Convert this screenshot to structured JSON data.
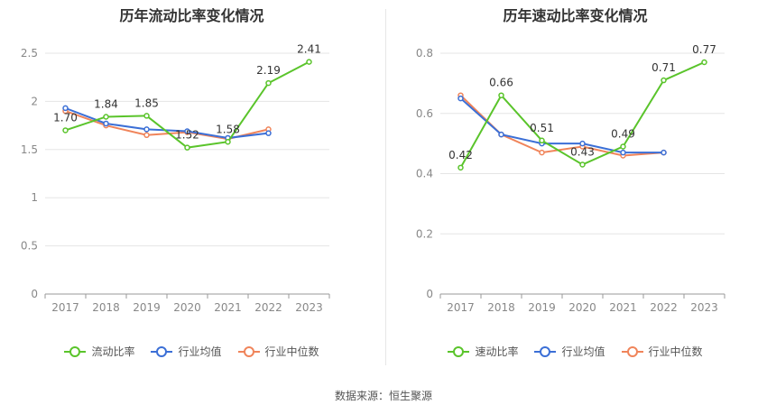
{
  "chart_data": [
    {
      "type": "line",
      "title": "历年流动比率变化情况",
      "categories": [
        "2017",
        "2018",
        "2019",
        "2020",
        "2021",
        "2022",
        "2023"
      ],
      "ylim": [
        0,
        2.5
      ],
      "yticks": [
        "0",
        "0.5",
        "1",
        "1.5",
        "2",
        "2.5"
      ],
      "ytick_values": [
        0,
        0.5,
        1,
        1.5,
        2,
        2.5
      ],
      "grid": true,
      "legend_position": "bottom",
      "series": [
        {
          "name": "流动比率",
          "color": "#5ac42b",
          "values": [
            1.7,
            1.84,
            1.85,
            1.52,
            1.58,
            2.19,
            2.41
          ],
          "labels": [
            "1.70",
            "1.84",
            "1.85",
            "1.52",
            "1.58",
            "2.19",
            "2.41"
          ]
        },
        {
          "name": "行业均值",
          "color": "#3b6fd6",
          "values": [
            1.93,
            1.77,
            1.71,
            1.69,
            1.62,
            1.67,
            null
          ]
        },
        {
          "name": "行业中位数",
          "color": "#f0845a",
          "values": [
            1.9,
            1.75,
            1.65,
            1.68,
            1.61,
            1.71,
            null
          ]
        }
      ]
    },
    {
      "type": "line",
      "title": "历年速动比率变化情况",
      "categories": [
        "2017",
        "2018",
        "2019",
        "2020",
        "2021",
        "2022",
        "2023"
      ],
      "ylim": [
        0,
        0.8
      ],
      "yticks": [
        "0",
        "0.2",
        "0.4",
        "0.6",
        "0.8"
      ],
      "ytick_values": [
        0,
        0.2,
        0.4,
        0.6,
        0.8
      ],
      "grid": true,
      "legend_position": "bottom",
      "series": [
        {
          "name": "速动比率",
          "color": "#5ac42b",
          "values": [
            0.42,
            0.66,
            0.51,
            0.43,
            0.49,
            0.71,
            0.77
          ],
          "labels": [
            "0.42",
            "0.66",
            "0.51",
            "0.43",
            "0.49",
            "0.71",
            "0.77"
          ]
        },
        {
          "name": "行业均值",
          "color": "#3b6fd6",
          "values": [
            0.65,
            0.53,
            0.5,
            0.5,
            0.47,
            0.47,
            null
          ]
        },
        {
          "name": "行业中位数",
          "color": "#f0845a",
          "values": [
            0.66,
            0.53,
            0.47,
            0.49,
            0.46,
            0.47,
            null
          ]
        }
      ]
    }
  ],
  "footer": {
    "source": "数据来源：恒生聚源"
  }
}
